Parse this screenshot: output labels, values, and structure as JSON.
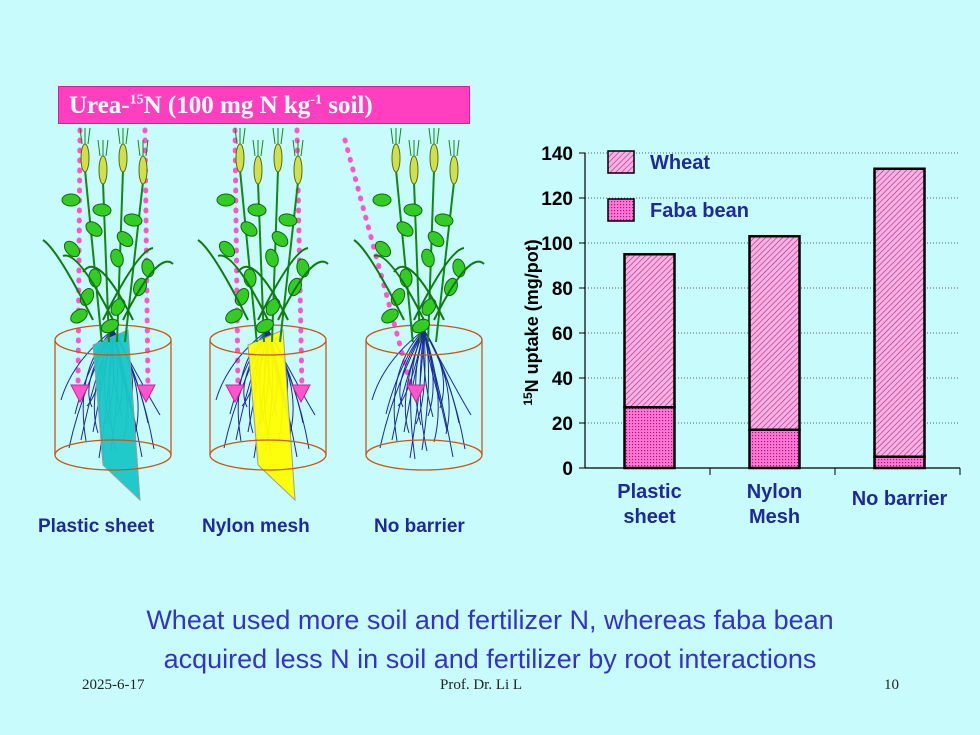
{
  "banner": {
    "pre": "Urea-",
    "sup1": "15",
    "mid": "N (100 mg N kg",
    "sup2": "-1",
    "post": " soil)"
  },
  "pots": [
    {
      "label": "Plastic sheet",
      "barrier": "plastic",
      "color": "#19c8c8"
    },
    {
      "label": "Nylon mesh",
      "barrier": "nylon",
      "color": "#ffff00"
    },
    {
      "label": "No barrier",
      "barrier": "none",
      "color": ""
    }
  ],
  "chart_data": {
    "type": "bar",
    "stacked": true,
    "categories": [
      [
        "Plastic",
        "sheet"
      ],
      [
        "Nylon",
        "Mesh"
      ],
      [
        "No barrier"
      ]
    ],
    "series": [
      {
        "name": "Faba bean",
        "values": [
          27,
          17,
          5
        ],
        "color": "#ff7ad9"
      },
      {
        "name": "Wheat",
        "values": [
          68,
          86,
          128
        ],
        "color": "#f2a6dc"
      }
    ],
    "ylabel_sup": "15",
    "ylabel": "N uptake (mg/pot)",
    "ylim": [
      0,
      140
    ],
    "yticks": [
      0,
      20,
      40,
      60,
      80,
      100,
      120,
      140
    ],
    "legend_placement": "top-left",
    "grid": true
  },
  "caption": {
    "line1": "Wheat used more soil and fertilizer N, whereas faba bean",
    "line2": "acquired less N in soil and fertilizer by root interactions"
  },
  "footer": {
    "date": "2025-6-17",
    "author": "Prof. Dr. Li L",
    "page": "10"
  }
}
